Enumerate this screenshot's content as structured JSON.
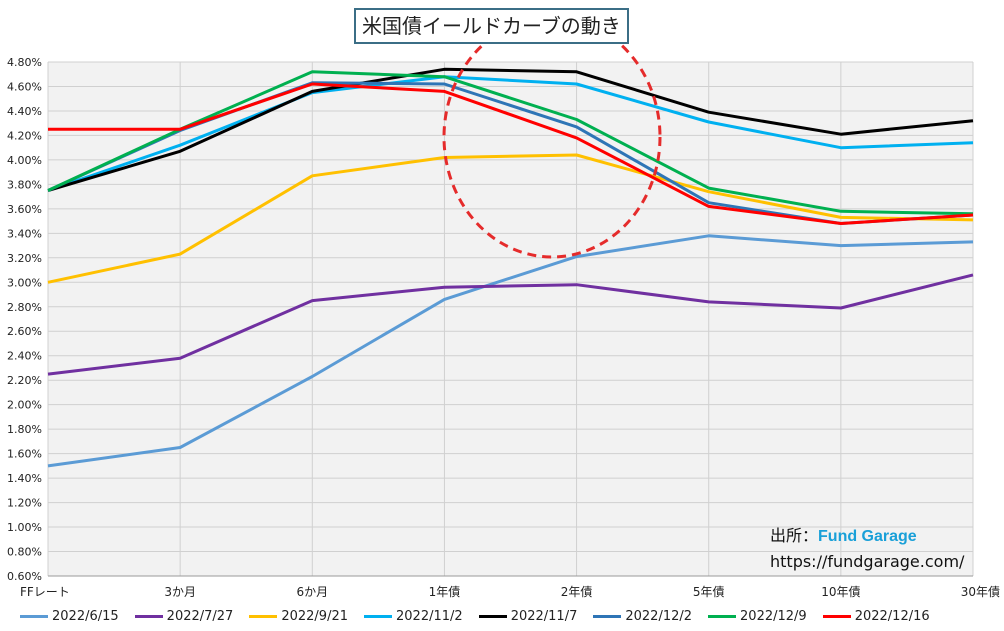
{
  "chart_data": {
    "type": "line",
    "title": "米国債イールドカーブの動き",
    "xlabel": "",
    "ylabel": "",
    "categories": [
      "FFレート",
      "3か月",
      "6か月",
      "1年債",
      "2年債",
      "5年債",
      "10年債",
      "30年債"
    ],
    "y_tick_labels": [
      "0.60%",
      "0.80%",
      "1.00%",
      "1.20%",
      "1.40%",
      "1.60%",
      "1.80%",
      "2.00%",
      "2.20%",
      "2.40%",
      "2.60%",
      "2.80%",
      "3.00%",
      "3.20%",
      "3.40%",
      "3.60%",
      "3.80%",
      "4.00%",
      "4.20%",
      "4.40%",
      "4.60%",
      "4.80%"
    ],
    "ylim": [
      0.6,
      4.8
    ],
    "grid": true,
    "legend_position": "bottom",
    "series": [
      {
        "name": "2022/6/15",
        "color": "#5b9bd5",
        "values": [
          1.5,
          1.65,
          2.23,
          2.86,
          3.21,
          3.38,
          3.3,
          3.33
        ]
      },
      {
        "name": "2022/7/27",
        "color": "#7030a0",
        "values": [
          2.25,
          2.38,
          2.85,
          2.96,
          2.98,
          2.84,
          2.79,
          3.06
        ]
      },
      {
        "name": "2022/9/21",
        "color": "#ffc000",
        "values": [
          3.0,
          3.23,
          3.87,
          4.02,
          4.04,
          3.74,
          3.53,
          3.51
        ]
      },
      {
        "name": "2022/11/2",
        "color": "#00b0f0",
        "values": [
          3.75,
          4.12,
          4.55,
          4.68,
          4.62,
          4.31,
          4.1,
          4.14
        ]
      },
      {
        "name": "2022/11/7",
        "color": "#000000",
        "values": [
          3.75,
          4.07,
          4.56,
          4.74,
          4.72,
          4.39,
          4.21,
          4.32
        ]
      },
      {
        "name": "2022/12/2",
        "color": "#2e75b6",
        "values": [
          3.75,
          4.24,
          4.63,
          4.62,
          4.27,
          3.65,
          3.48,
          3.55
        ]
      },
      {
        "name": "2022/12/9",
        "color": "#00b050",
        "values": [
          3.75,
          4.25,
          4.72,
          4.68,
          4.33,
          3.77,
          3.58,
          3.56
        ]
      },
      {
        "name": "2022/12/16",
        "color": "#ff0000",
        "values": [
          4.25,
          4.25,
          4.62,
          4.56,
          4.18,
          3.62,
          3.48,
          3.55
        ]
      }
    ]
  },
  "credit": {
    "label": "出所：",
    "brand": "Fund Garage",
    "url": "https://fundgarage.com/"
  },
  "colors": {
    "plot_bg": "#f2f2f2",
    "grid": "#d0d0d0",
    "annotation_circle": "#e52b2b",
    "title_border": "#3b6e86"
  }
}
